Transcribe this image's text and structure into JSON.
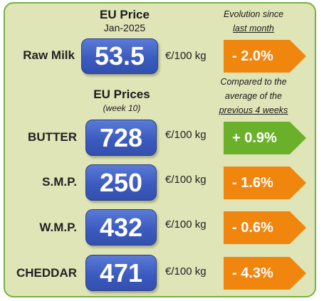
{
  "header": {
    "eu_price_title": "EU Price",
    "eu_price_date": "Jan-2025",
    "evolution_line1": "Evolution since",
    "evolution_line2": "last month",
    "eu_prices_title": "EU Prices",
    "eu_prices_week": "(week 10)",
    "compared_line1": "Compared to the",
    "compared_line2": "average of the",
    "compared_line3": "previous 4 weeks"
  },
  "rows": [
    {
      "label": "Raw Milk",
      "price": "53.5",
      "unit": "€/100 kg",
      "change": "- 2.0%",
      "direction": "down"
    },
    {
      "label": "BUTTER",
      "price": "728",
      "unit": "€/100 kg",
      "change": "+ 0.9%",
      "direction": "up"
    },
    {
      "label": "S.M.P.",
      "price": "250",
      "unit": "€/100 kg",
      "change": "- 1.6%",
      "direction": "down"
    },
    {
      "label": "W.M.P.",
      "price": "432",
      "unit": "€/100 kg",
      "change": "- 0.6%",
      "direction": "down"
    },
    {
      "label": "CHEDDAR",
      "price": "471",
      "unit": "€/100 kg",
      "change": "- 4.3%",
      "direction": "down"
    }
  ],
  "colors": {
    "background": "#dfe5b7",
    "border": "#77b241",
    "price_box": "#3c5bc0",
    "down": "#f1860f",
    "up": "#6bb02a"
  }
}
